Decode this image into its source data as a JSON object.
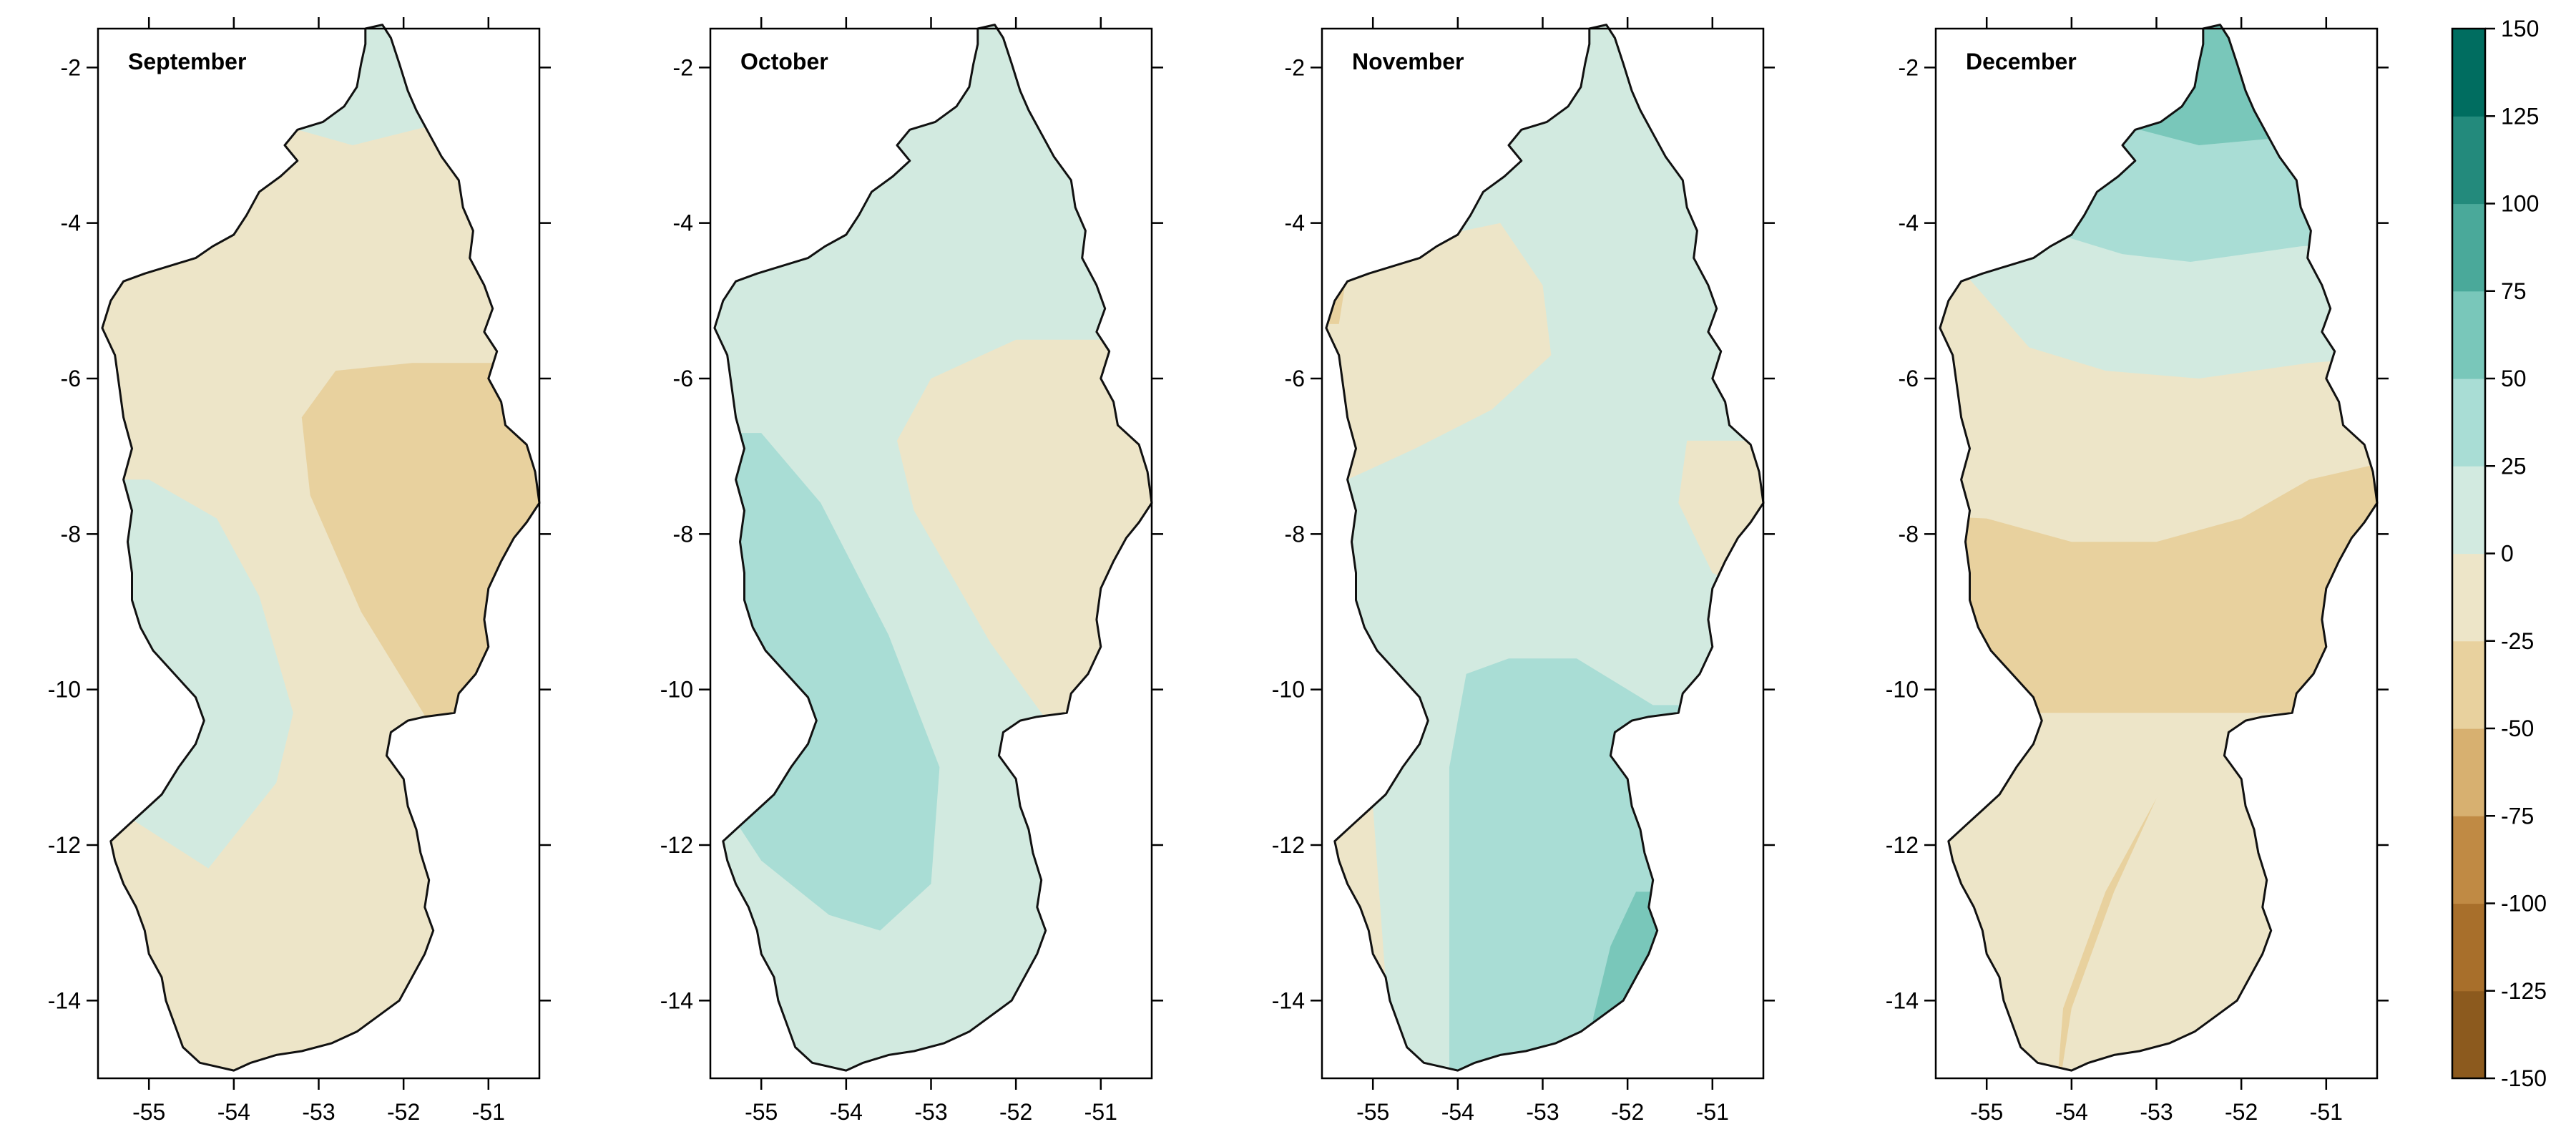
{
  "colorbar": {
    "levels": [
      -150,
      -125,
      -100,
      -75,
      -50,
      -25,
      0,
      25,
      50,
      75,
      100,
      125,
      150
    ],
    "labels": [
      "-150",
      "-125",
      "-100",
      "-75",
      "-50",
      "-25",
      "0",
      "25",
      "50",
      "75",
      "100",
      "125",
      "150"
    ],
    "colors": [
      "#8c5a1e",
      "#a86f2b",
      "#c08a44",
      "#d7b070",
      "#e8d19e",
      "#ede5c8",
      "#d2eae0",
      "#a9ddd5",
      "#79c7ba",
      "#4aa99a",
      "#238a7c",
      "#006d60"
    ]
  },
  "axes": {
    "x_ticks": [
      -55,
      -54,
      -53,
      -52,
      -51
    ],
    "x_tick_labels": [
      "-55",
      "-54",
      "-53",
      "-52",
      "-51"
    ],
    "y_ticks": [
      -2,
      -4,
      -6,
      -8,
      -10,
      -12,
      -14
    ],
    "y_tick_labels": [
      "-2",
      "-4",
      "-6",
      "-8",
      "-10",
      "-12",
      "-14"
    ],
    "lon_range": [
      -55.6,
      -50.4
    ],
    "lat_range": [
      -15.0,
      -1.5
    ]
  },
  "panels": [
    {
      "id": "september",
      "title": "September",
      "background_bin": 5,
      "regions": [
        {
          "bin": 6,
          "polygon": [
            [
              -53.9,
              -1.2
            ],
            [
              -50.0,
              -1.2
            ],
            [
              -50.0,
              -2.2
            ],
            [
              -51.5,
              -2.7
            ],
            [
              -52.6,
              -3.0
            ],
            [
              -53.9,
              -2.6
            ]
          ]
        },
        {
          "bin": 4,
          "polygon": [
            [
              -51.9,
              -5.8
            ],
            [
              -50.0,
              -5.8
            ],
            [
              -50.0,
              -11.0
            ],
            [
              -51.6,
              -10.6
            ],
            [
              -52.5,
              -9.0
            ],
            [
              -53.1,
              -7.5
            ],
            [
              -53.2,
              -6.5
            ],
            [
              -52.8,
              -5.9
            ]
          ]
        },
        {
          "bin": 6,
          "polygon": [
            [
              -57.0,
              -7.3
            ],
            [
              -55.0,
              -7.3
            ],
            [
              -54.2,
              -7.8
            ],
            [
              -53.7,
              -8.8
            ],
            [
              -53.3,
              -10.3
            ],
            [
              -53.5,
              -11.2
            ],
            [
              -54.3,
              -12.3
            ],
            [
              -55.3,
              -11.6
            ],
            [
              -57.0,
              -11.5
            ]
          ]
        }
      ]
    },
    {
      "id": "october",
      "title": "October",
      "background_bin": 6,
      "regions": [
        {
          "bin": 5,
          "polygon": [
            [
              -52.0,
              -5.5
            ],
            [
              -50.0,
              -5.5
            ],
            [
              -50.0,
              -11.0
            ],
            [
              -51.5,
              -10.6
            ],
            [
              -52.3,
              -9.4
            ],
            [
              -53.2,
              -7.7
            ],
            [
              -53.4,
              -6.8
            ],
            [
              -53.0,
              -6.0
            ]
          ]
        },
        {
          "bin": 7,
          "polygon": [
            [
              -57.0,
              -6.7
            ],
            [
              -55.0,
              -6.7
            ],
            [
              -54.3,
              -7.6
            ],
            [
              -53.5,
              -9.3
            ],
            [
              -52.9,
              -11.0
            ],
            [
              -53.0,
              -12.5
            ],
            [
              -53.6,
              -13.1
            ],
            [
              -54.2,
              -12.9
            ],
            [
              -55.0,
              -12.2
            ],
            [
              -55.3,
              -11.7
            ],
            [
              -57.0,
              -11.7
            ]
          ]
        }
      ]
    },
    {
      "id": "november",
      "title": "November",
      "background_bin": 6,
      "regions": [
        {
          "bin": 5,
          "polygon": [
            [
              -57.0,
              -4.8
            ],
            [
              -53.5,
              -4.0
            ],
            [
              -53.0,
              -4.8
            ],
            [
              -52.9,
              -5.7
            ],
            [
              -53.6,
              -6.4
            ],
            [
              -54.5,
              -6.9
            ],
            [
              -55.3,
              -7.3
            ],
            [
              -57.0,
              -7.3
            ]
          ]
        },
        {
          "bin": 4,
          "polygon": [
            [
              -57.0,
              -4.6
            ],
            [
              -55.3,
              -4.6
            ],
            [
              -55.4,
              -5.3
            ],
            [
              -57.0,
              -5.3
            ]
          ]
        },
        {
          "bin": 5,
          "polygon": [
            [
              -51.3,
              -6.8
            ],
            [
              -50.0,
              -6.8
            ],
            [
              -50.0,
              -9.0
            ],
            [
              -51.0,
              -8.5
            ],
            [
              -51.4,
              -7.6
            ]
          ]
        },
        {
          "bin": 5,
          "polygon": [
            [
              -57.0,
              -11.5
            ],
            [
              -55.0,
              -11.5
            ],
            [
              -54.9,
              -13.0
            ],
            [
              -54.8,
              -14.5
            ],
            [
              -57.0,
              -14.5
            ]
          ]
        },
        {
          "bin": 7,
          "polygon": [
            [
              -53.9,
              -9.8
            ],
            [
              -53.4,
              -9.6
            ],
            [
              -52.6,
              -9.6
            ],
            [
              -51.7,
              -10.2
            ],
            [
              -50.0,
              -10.2
            ],
            [
              -50.0,
              -15.5
            ],
            [
              -54.1,
              -15.5
            ],
            [
              -54.1,
              -13.0
            ],
            [
              -54.1,
              -11.0
            ]
          ]
        },
        {
          "bin": 8,
          "polygon": [
            [
              -51.9,
              -12.6
            ],
            [
              -50.0,
              -12.6
            ],
            [
              -50.0,
              -15.5
            ],
            [
              -52.6,
              -15.5
            ],
            [
              -52.4,
              -14.2
            ],
            [
              -52.2,
              -13.3
            ]
          ]
        }
      ]
    },
    {
      "id": "december",
      "title": "December",
      "background_bin": 5,
      "regions": [
        {
          "bin": 6,
          "polygon": [
            [
              -57.0,
              -1.0
            ],
            [
              -50.0,
              -1.0
            ],
            [
              -50.0,
              -5.7
            ],
            [
              -51.2,
              -5.8
            ],
            [
              -52.5,
              -6.0
            ],
            [
              -53.6,
              -5.9
            ],
            [
              -54.5,
              -5.6
            ],
            [
              -55.3,
              -4.6
            ],
            [
              -57.0,
              -4.6
            ]
          ]
        },
        {
          "bin": 7,
          "polygon": [
            [
              -57.0,
              -1.0
            ],
            [
              -50.0,
              -1.0
            ],
            [
              -50.0,
              -4.2
            ],
            [
              -51.3,
              -4.3
            ],
            [
              -52.6,
              -4.5
            ],
            [
              -53.4,
              -4.4
            ],
            [
              -54.0,
              -4.2
            ],
            [
              -54.5,
              -4.0
            ],
            [
              -57.0,
              -3.5
            ]
          ]
        },
        {
          "bin": 8,
          "polygon": [
            [
              -54.0,
              -1.0
            ],
            [
              -50.0,
              -1.0
            ],
            [
              -50.0,
              -3.0
            ],
            [
              -51.5,
              -2.9
            ],
            [
              -52.5,
              -3.0
            ],
            [
              -53.2,
              -2.8
            ],
            [
              -54.0,
              -2.5
            ]
          ]
        },
        {
          "bin": 4,
          "polygon": [
            [
              -57.0,
              -7.7
            ],
            [
              -55.0,
              -7.8
            ],
            [
              -54.0,
              -8.1
            ],
            [
              -53.0,
              -8.1
            ],
            [
              -52.0,
              -7.8
            ],
            [
              -51.2,
              -7.3
            ],
            [
              -50.0,
              -7.0
            ],
            [
              -50.0,
              -15.5
            ],
            [
              -54.2,
              -15.5
            ],
            [
              -54.1,
              -14.1
            ],
            [
              -53.6,
              -12.6
            ],
            [
              -53.0,
              -11.4
            ],
            [
              -52.4,
              -10.7
            ],
            [
              -51.4,
              -10.4
            ],
            [
              -51.0,
              -10.3
            ],
            [
              -57.0,
              -10.3
            ]
          ]
        },
        {
          "bin": 5,
          "polygon": [
            [
              -52.5,
              -10.6
            ],
            [
              -51.2,
              -10.5
            ],
            [
              -50.0,
              -10.5
            ],
            [
              -50.0,
              -15.5
            ],
            [
              -54.2,
              -15.5
            ],
            [
              -54.0,
              -14.1
            ],
            [
              -53.5,
              -12.6
            ],
            [
              -53.0,
              -11.4
            ]
          ]
        }
      ]
    }
  ]
}
